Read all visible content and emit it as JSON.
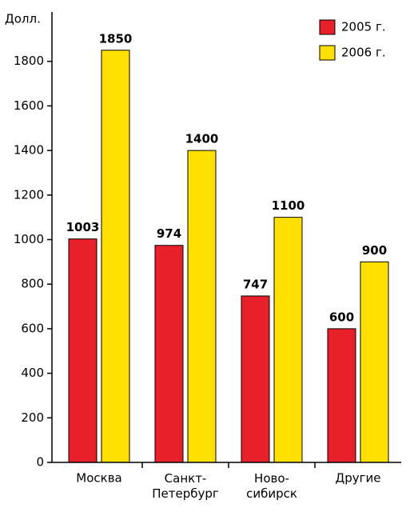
{
  "chart_data": {
    "type": "bar",
    "y_label": "Долл.",
    "categories": [
      "Москва",
      "Санкт-\nПетербург",
      "Ново-\nсибирск",
      "Другие"
    ],
    "series": [
      {
        "name": "2005 г.",
        "color": "#e8202a",
        "values": [
          1003,
          974,
          747,
          600
        ]
      },
      {
        "name": "2006 г.",
        "color": "#ffe000",
        "values": [
          1850,
          1400,
          1100,
          900
        ]
      }
    ],
    "ylim": [
      0,
      2000
    ],
    "yticks": [
      0,
      200,
      400,
      600,
      800,
      1000,
      1200,
      1400,
      1600,
      1800
    ],
    "legend": "top-right"
  }
}
